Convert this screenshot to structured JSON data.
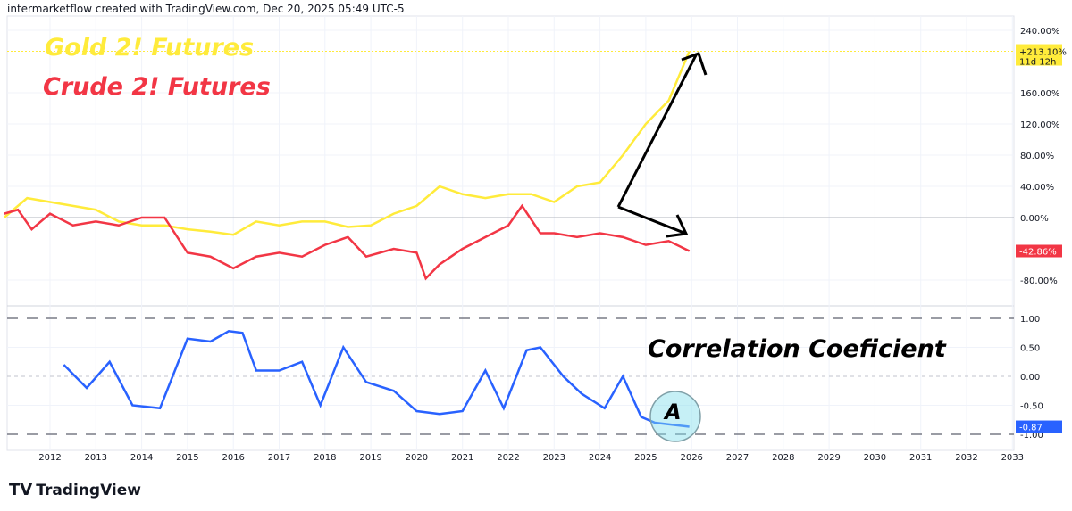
{
  "header": {
    "text": "intermarketflow created with TradingView.com, Dec 20, 2025 05:49 UTC-5"
  },
  "annotations": {
    "gold_title": "Gold 2! Futures",
    "crude_title": "Crude 2! Futures",
    "corr_title": "Correlation Coeficient",
    "circle_label": "A"
  },
  "footer": {
    "logo_text": "TradingView"
  },
  "colors": {
    "gold": "#ffeb3b",
    "crude": "#f23645",
    "correlation": "#2962ff",
    "arrow": "#000000"
  },
  "chart_data": [
    {
      "type": "line",
      "pane": "top",
      "yaxis_ticks": [
        "240.00%",
        "160.00%",
        "120.00%",
        "80.00%",
        "40.00%",
        "0.00%",
        "-80.00%"
      ],
      "ylim": [
        -100,
        240
      ],
      "grid": true,
      "series": [
        {
          "name": "Gold 2! Futures",
          "last_label": "+213.10%",
          "countdown": "11d 12h",
          "color": "#ffeb3b",
          "x": [
            2011.0,
            2011.5,
            2012.0,
            2012.5,
            2013.0,
            2013.5,
            2014.0,
            2014.5,
            2015.0,
            2015.5,
            2016.0,
            2016.5,
            2017.0,
            2017.5,
            2018.0,
            2018.5,
            2019.0,
            2019.5,
            2020.0,
            2020.5,
            2021.0,
            2021.5,
            2022.0,
            2022.5,
            2023.0,
            2023.5,
            2024.0,
            2024.5,
            2025.0,
            2025.5,
            2025.95
          ],
          "y": [
            0,
            25,
            20,
            15,
            10,
            -5,
            -10,
            -10,
            -15,
            -18,
            -22,
            -5,
            -10,
            -5,
            -5,
            -12,
            -10,
            5,
            15,
            40,
            30,
            25,
            30,
            30,
            20,
            40,
            45,
            80,
            120,
            150,
            213.1
          ]
        },
        {
          "name": "Crude 2! Futures",
          "last_label": "-42.86%",
          "color": "#f23645",
          "x": [
            2011.0,
            2011.3,
            2011.6,
            2012.0,
            2012.5,
            2013.0,
            2013.5,
            2014.0,
            2014.5,
            2015.0,
            2015.5,
            2016.0,
            2016.5,
            2017.0,
            2017.5,
            2018.0,
            2018.5,
            2018.9,
            2019.5,
            2020.0,
            2020.2,
            2020.5,
            2021.0,
            2021.5,
            2022.0,
            2022.3,
            2022.7,
            2023.0,
            2023.5,
            2024.0,
            2024.5,
            2025.0,
            2025.5,
            2025.95
          ],
          "y": [
            5,
            10,
            -15,
            5,
            -10,
            -5,
            -10,
            0,
            0,
            -45,
            -50,
            -65,
            -50,
            -45,
            -50,
            -35,
            -25,
            -50,
            -40,
            -45,
            -78,
            -60,
            -40,
            -25,
            -10,
            15,
            -20,
            -20,
            -25,
            -20,
            -25,
            -35,
            -30,
            -42.86
          ]
        }
      ]
    },
    {
      "type": "line",
      "pane": "bottom",
      "yaxis_ticks": [
        "1.00",
        "0.50",
        "0.00",
        "-0.50",
        "-1.00"
      ],
      "ylim": [
        -1.05,
        1.05
      ],
      "series": [
        {
          "name": "Correlation Coeficient",
          "last_label": "-0.87",
          "color": "#2962ff",
          "x": [
            2012.3,
            2012.8,
            2013.3,
            2013.8,
            2014.4,
            2015.0,
            2015.5,
            2015.9,
            2016.2,
            2016.5,
            2017.0,
            2017.5,
            2017.9,
            2018.4,
            2018.9,
            2019.5,
            2020.0,
            2020.5,
            2021.0,
            2021.5,
            2021.9,
            2022.4,
            2022.7,
            2023.2,
            2023.6,
            2024.1,
            2024.5,
            2024.9,
            2025.2,
            2025.95
          ],
          "y": [
            0.2,
            -0.2,
            0.25,
            -0.5,
            -0.55,
            0.65,
            0.6,
            0.78,
            0.75,
            0.1,
            0.1,
            0.25,
            -0.5,
            0.5,
            -0.1,
            -0.25,
            -0.6,
            -0.65,
            -0.6,
            0.1,
            -0.55,
            0.45,
            0.5,
            0.0,
            -0.3,
            -0.55,
            0.0,
            -0.7,
            -0.8,
            -0.87
          ]
        }
      ]
    },
    {
      "xaxis_ticks": [
        "2012",
        "2013",
        "2014",
        "2015",
        "2016",
        "2017",
        "2018",
        "2019",
        "2020",
        "2021",
        "2022",
        "2023",
        "2024",
        "2025",
        "2026",
        "2027",
        "2028",
        "2029",
        "2030",
        "2031",
        "2032",
        "2033"
      ]
    }
  ]
}
